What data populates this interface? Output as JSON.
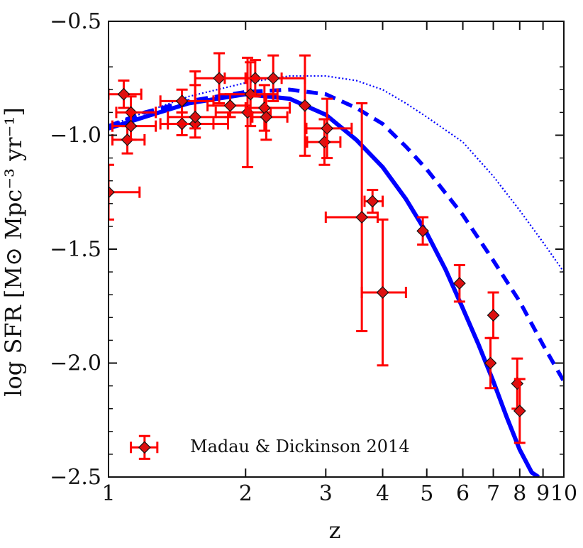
{
  "chart_data": {
    "type": "scatter",
    "title": "",
    "xlabel": "z",
    "ylabel": "log SFR [M⊙ Mpc⁻³ yr⁻¹]",
    "xscale": "log",
    "xlim": [
      1,
      10
    ],
    "ylim": [
      -2.5,
      -0.5
    ],
    "grid": false,
    "legend_position": "bottom-left",
    "legend_entries": [
      "Madau & Dickinson 2014"
    ],
    "tick_labels": {
      "x": [
        "1",
        "2",
        "3",
        "4",
        "5",
        "6",
        "7",
        "8",
        "9",
        "10"
      ],
      "y": [
        "−0.5",
        "−1.0",
        "−1.5",
        "−2.0",
        "−2.5"
      ]
    },
    "colors": {
      "points": "#ff0000",
      "point_fill": "#dd1111",
      "point_edge": "#111111",
      "curves": "#0000ff",
      "axes": "#111111",
      "background": "#ffffff"
    },
    "data_points": [
      {
        "x": 1.0,
        "y": -1.25,
        "xerr": [
          0.0,
          0.17
        ],
        "yerr": [
          0.12,
          0.12
        ]
      },
      {
        "x": 1.08,
        "y": -0.82,
        "xerr": [
          0.08,
          0.1
        ],
        "yerr": [
          0.06,
          0.06
        ]
      },
      {
        "x": 1.1,
        "y": -1.02,
        "xerr": [
          0.08,
          0.1
        ],
        "yerr": [
          0.06,
          0.06
        ]
      },
      {
        "x": 1.12,
        "y": -0.9,
        "xerr": [
          0.08,
          0.15
        ],
        "yerr": [
          0.06,
          0.07
        ]
      },
      {
        "x": 1.12,
        "y": -0.96,
        "xerr": [
          0.1,
          0.15
        ],
        "yerr": [
          0.06,
          0.06
        ]
      },
      {
        "x": 1.45,
        "y": -0.85,
        "xerr": [
          0.15,
          0.25
        ],
        "yerr": [
          0.05,
          0.05
        ]
      },
      {
        "x": 1.45,
        "y": -0.95,
        "xerr": [
          0.15,
          0.25
        ],
        "yerr": [
          0.05,
          0.05
        ]
      },
      {
        "x": 1.55,
        "y": -0.95,
        "xerr": [
          0.2,
          0.28
        ],
        "yerr": [
          0.06,
          0.17
        ]
      },
      {
        "x": 1.55,
        "y": -0.92,
        "xerr": [
          0.2,
          0.28
        ],
        "yerr": [
          0.05,
          0.2
        ]
      },
      {
        "x": 1.75,
        "y": -0.75,
        "xerr": [
          0.2,
          0.25
        ],
        "yerr": [
          0.11,
          0.11
        ]
      },
      {
        "x": 1.85,
        "y": -0.87,
        "xerr": [
          0.2,
          0.2
        ],
        "yerr": [
          0.05,
          0.05
        ]
      },
      {
        "x": 2.02,
        "y": -0.9,
        "xerr": [
          0.3,
          0.25
        ],
        "yerr": [
          0.24,
          0.24
        ]
      },
      {
        "x": 2.05,
        "y": -0.82,
        "xerr": [
          0.3,
          0.3
        ],
        "yerr": [
          0.14,
          0.14
        ]
      },
      {
        "x": 2.1,
        "y": -0.75,
        "xerr": [
          0.3,
          0.3
        ],
        "yerr": [
          0.08,
          0.08
        ]
      },
      {
        "x": 2.2,
        "y": -0.88,
        "xerr": [
          0.2,
          0.3
        ],
        "yerr": [
          0.1,
          0.1
        ]
      },
      {
        "x": 2.22,
        "y": -0.92,
        "xerr": [
          0.15,
          0.25
        ],
        "yerr": [
          0.1,
          0.1
        ]
      },
      {
        "x": 2.3,
        "y": -0.75,
        "xerr": [
          0.3,
          0.4
        ],
        "yerr": [
          0.1,
          0.1
        ]
      },
      {
        "x": 2.7,
        "y": -0.87,
        "xerr": [
          0.0,
          0.0
        ],
        "yerr": [
          0.22,
          0.22
        ]
      },
      {
        "x": 2.98,
        "y": -1.03,
        "xerr": [
          0.25,
          0.25
        ],
        "yerr": [
          0.1,
          0.1
        ]
      },
      {
        "x": 3.02,
        "y": -0.97,
        "xerr": [
          0.3,
          0.4
        ],
        "yerr": [
          0.13,
          0.13
        ]
      },
      {
        "x": 3.6,
        "y": -1.36,
        "xerr": [
          0.6,
          0.3
        ],
        "yerr": [
          0.5,
          0.5
        ]
      },
      {
        "x": 3.8,
        "y": -1.29,
        "xerr": [
          0.15,
          0.2
        ],
        "yerr": [
          0.05,
          0.05
        ]
      },
      {
        "x": 4.0,
        "y": -1.69,
        "xerr": [
          0.4,
          0.5
        ],
        "yerr": [
          0.32,
          0.32
        ]
      },
      {
        "x": 4.9,
        "y": -1.42,
        "xerr": [
          0.0,
          0.0
        ],
        "yerr": [
          0.06,
          0.06
        ]
      },
      {
        "x": 5.9,
        "y": -1.65,
        "xerr": [
          0.0,
          0.0
        ],
        "yerr": [
          0.08,
          0.08
        ]
      },
      {
        "x": 7.0,
        "y": -1.79,
        "xerr": [
          0.0,
          0.0
        ],
        "yerr": [
          0.1,
          0.1
        ]
      },
      {
        "x": 6.9,
        "y": -2.0,
        "xerr": [
          0.0,
          0.0
        ],
        "yerr": [
          0.11,
          0.11
        ]
      },
      {
        "x": 7.9,
        "y": -2.09,
        "xerr": [
          0.0,
          0.0
        ],
        "yerr": [
          0.11,
          0.11
        ]
      },
      {
        "x": 8.0,
        "y": -2.21,
        "xerr": [
          0.0,
          0.0
        ],
        "yerr": [
          0.14,
          0.14
        ]
      }
    ],
    "curves": [
      {
        "name": "solid",
        "style": "solid",
        "x": [
          1.0,
          1.2,
          1.5,
          2.0,
          2.5,
          3.0,
          3.5,
          4.0,
          4.5,
          5.0,
          5.5,
          6.0,
          6.5,
          7.0,
          7.5,
          8.0,
          8.5,
          8.8
        ],
        "y": [
          -0.97,
          -0.92,
          -0.86,
          -0.82,
          -0.84,
          -0.91,
          -1.02,
          -1.14,
          -1.28,
          -1.43,
          -1.59,
          -1.76,
          -1.92,
          -2.08,
          -2.24,
          -2.38,
          -2.48,
          -2.5
        ]
      },
      {
        "name": "dashed",
        "style": "dashed",
        "x": [
          1.0,
          1.2,
          1.5,
          2.0,
          2.5,
          3.0,
          3.5,
          4.0,
          4.5,
          5.0,
          6.0,
          7.0,
          8.0,
          9.0,
          10.0
        ],
        "y": [
          -0.96,
          -0.9,
          -0.85,
          -0.81,
          -0.8,
          -0.82,
          -0.88,
          -0.95,
          -1.05,
          -1.15,
          -1.35,
          -1.55,
          -1.73,
          -1.92,
          -2.08
        ]
      },
      {
        "name": "dotted",
        "style": "dotted",
        "x": [
          1.0,
          1.2,
          1.5,
          2.0,
          2.5,
          3.0,
          3.5,
          4.0,
          4.5,
          5.0,
          6.0,
          7.0,
          8.0,
          9.0,
          10.0
        ],
        "y": [
          -0.96,
          -0.9,
          -0.83,
          -0.77,
          -0.74,
          -0.74,
          -0.76,
          -0.8,
          -0.86,
          -0.92,
          -1.03,
          -1.18,
          -1.33,
          -1.47,
          -1.6
        ]
      }
    ]
  }
}
